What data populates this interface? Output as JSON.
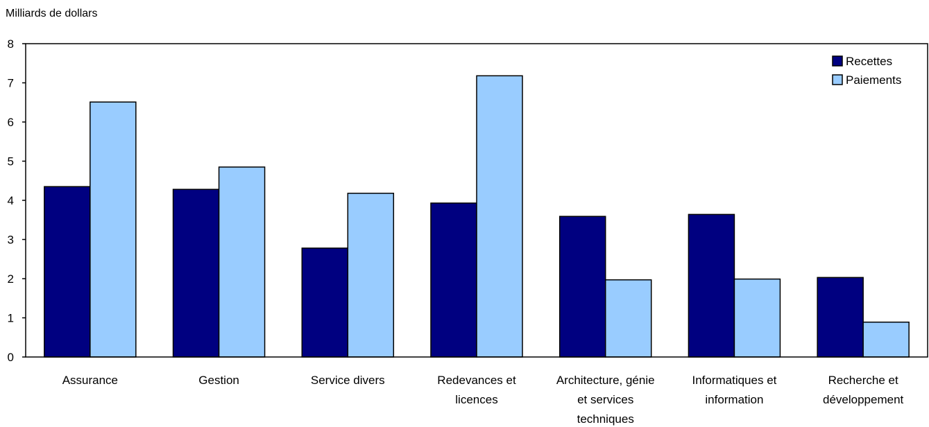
{
  "chart_data": {
    "type": "bar",
    "ylabel": "Milliards de dollars",
    "ylim": [
      0,
      8
    ],
    "yticks": [
      "0",
      "1",
      "2",
      "3",
      "4",
      "5",
      "6",
      "7",
      "8"
    ],
    "categories": [
      [
        "Assurance"
      ],
      [
        "Gestion"
      ],
      [
        "Service divers"
      ],
      [
        "Redevances et",
        "licences"
      ],
      [
        "Architecture, génie",
        "et services",
        "techniques"
      ],
      [
        "Informatiques et",
        "information"
      ],
      [
        "Recherche et",
        "développement"
      ]
    ],
    "series": [
      {
        "name": "Recettes",
        "color": "#000080",
        "values": [
          4.35,
          4.28,
          2.78,
          3.93,
          3.59,
          3.64,
          2.03
        ]
      },
      {
        "name": "Paiements",
        "color": "#99ccff",
        "values": [
          6.51,
          4.85,
          4.18,
          7.18,
          1.97,
          1.99,
          0.89
        ]
      }
    ],
    "legend_position": "top-right",
    "grid": false
  }
}
